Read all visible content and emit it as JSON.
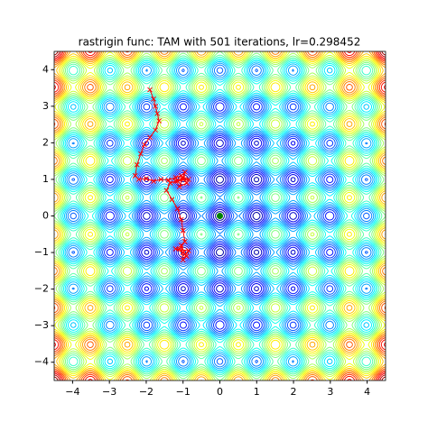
{
  "chart_data": {
    "type": "contour",
    "title": "rastrigin func: TAM with 501 iterations, lr=0.298452",
    "xlim": [
      -4.5,
      4.5
    ],
    "ylim": [
      -4.5,
      4.5
    ],
    "xticks": [
      {
        "value": -4,
        "label": "−4"
      },
      {
        "value": -3,
        "label": "−3"
      },
      {
        "value": -2,
        "label": "−2"
      },
      {
        "value": -1,
        "label": "−1"
      },
      0,
      1,
      2,
      3,
      4
    ],
    "yticks": [
      {
        "value": -4,
        "label": "−4"
      },
      {
        "value": -3,
        "label": "−3"
      },
      {
        "value": -2,
        "label": "−2"
      },
      {
        "value": -1,
        "label": "−1"
      },
      0,
      1,
      2,
      3,
      4
    ],
    "series": [
      {
        "color": "#ff0000",
        "x": [
          -1.9,
          -1.8,
          -1.75,
          -1.7,
          -1.65,
          -1.75,
          -1.9,
          -2.05,
          -2.15,
          -2.25,
          -2.3,
          -2.2,
          -2.0,
          -1.8,
          -1.6,
          -1.4,
          -1.2,
          -1.05,
          -0.9,
          -1.1,
          -0.95,
          -1.0,
          -1.15,
          -0.85,
          -1.0,
          -1.2,
          -1.35,
          -1.45,
          -1.3,
          -1.15,
          -1.05,
          -1.0,
          -0.95,
          -1.1,
          -0.9,
          -1.0,
          -1.2,
          -0.85,
          -1.0,
          -1.05,
          -0.95,
          -1.0
        ],
        "y": [
          3.45,
          3.2,
          3.0,
          2.8,
          2.6,
          2.35,
          2.15,
          1.95,
          1.7,
          1.4,
          1.1,
          1.0,
          1.02,
          0.95,
          1.0,
          0.98,
          1.05,
          1.1,
          0.9,
          0.8,
          1.2,
          1.0,
          0.95,
          1.0,
          1.05,
          0.95,
          0.9,
          0.7,
          0.45,
          0.2,
          -0.1,
          -0.4,
          -0.7,
          -0.9,
          -1.1,
          -1.0,
          -0.9,
          -0.95,
          -1.2,
          -0.8,
          -1.05,
          -1.0
        ]
      },
      {
        "color": "#008000",
        "x": [
          0
        ],
        "y": [
          0
        ]
      }
    ]
  }
}
